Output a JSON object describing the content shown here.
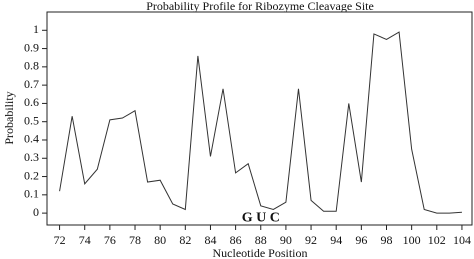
{
  "chart_data": {
    "type": "line",
    "title": "Probability Profile for Ribozyme Cleavage Site",
    "x_label": "Nucleotide Position",
    "y_label": "Probability",
    "annotation": "G U C",
    "x": [
      72,
      73,
      74,
      75,
      76,
      77,
      78,
      79,
      80,
      81,
      82,
      83,
      84,
      85,
      86,
      87,
      88,
      89,
      90,
      91,
      92,
      93,
      94,
      95,
      96,
      97,
      98,
      99,
      100,
      101,
      102,
      103,
      104
    ],
    "values": [
      0.12,
      0.53,
      0.16,
      0.24,
      0.51,
      0.52,
      0.56,
      0.17,
      0.18,
      0.05,
      0.02,
      0.86,
      0.31,
      0.68,
      0.22,
      0.27,
      0.04,
      0.02,
      0.06,
      0.68,
      0.07,
      0.01,
      0.01,
      0.6,
      0.17,
      0.98,
      0.95,
      0.99,
      0.35,
      0.02,
      0,
      0,
      0.005
    ],
    "color": "#333333",
    "xlim": [
      71,
      104.8
    ],
    "ylim": [
      -0.065,
      1.1
    ],
    "xticks": [
      72,
      74,
      76,
      78,
      80,
      82,
      84,
      86,
      88,
      90,
      92,
      94,
      96,
      98,
      100,
      102,
      104
    ],
    "yticks": [
      0,
      0.1,
      0.2,
      0.3,
      0.4,
      0.5,
      0.6,
      0.7,
      0.8,
      0.9,
      1
    ]
  }
}
